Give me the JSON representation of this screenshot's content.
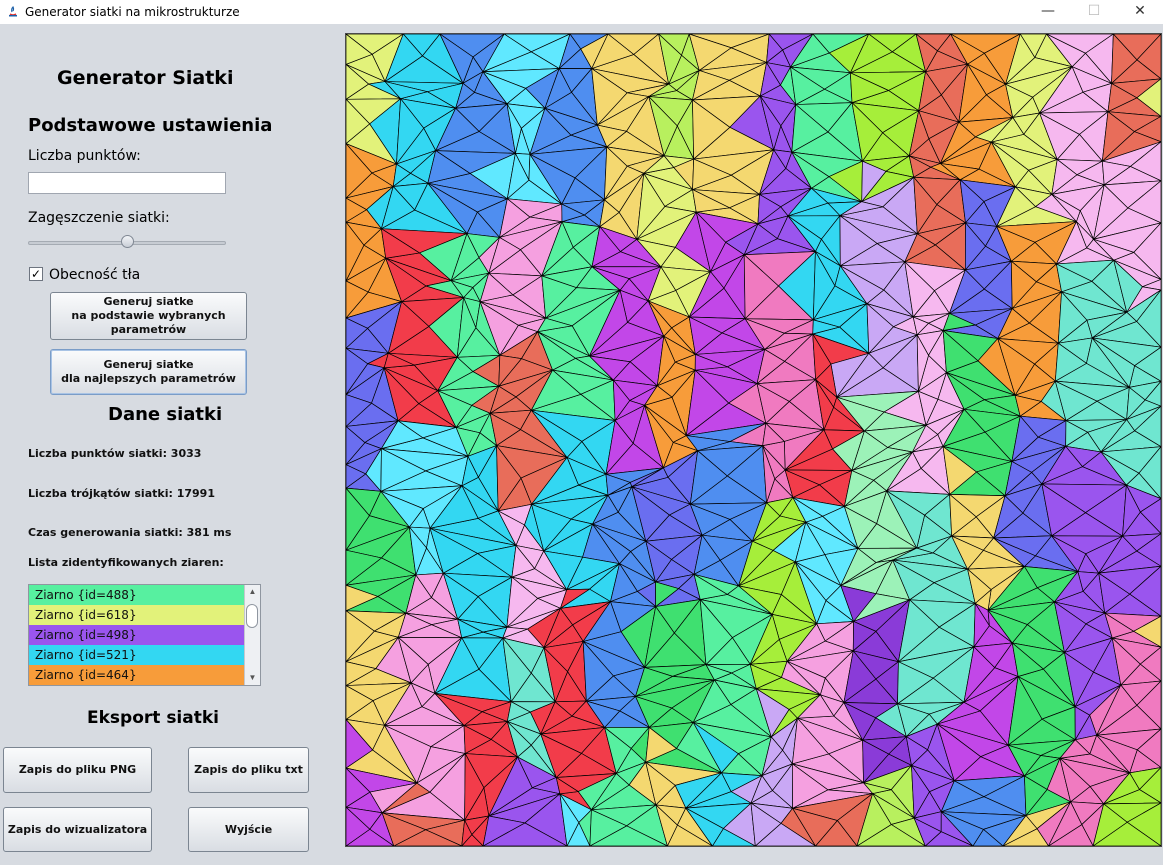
{
  "window": {
    "title": "Generator siatki na mikrostrukturze",
    "minimize": "—",
    "maximize": "☐",
    "close": "✕"
  },
  "sidebar": {
    "app_heading": "Generator Siatki",
    "basic_section": "Podstawowe ustawienia",
    "points_label": "Liczba punktów:",
    "points_value": "",
    "density_label": "Zagęszczenie siatki:",
    "density_level": 0.5,
    "background_checkbox": {
      "label": "Obecność tła",
      "checked": true,
      "mark": "✓"
    },
    "generate_params_button": {
      "line1": "Generuj siatke",
      "line2": "na podstawie wybranych",
      "line3": "parametrów"
    },
    "generate_best_button": {
      "line1": "Generuj siatke",
      "line2": "dla najlepszych parametrów"
    },
    "mesh_data_section": "Dane siatki",
    "stats": {
      "points": "Liczba punktów siatki: 3033",
      "triangles": "Liczba trójkątów siatki: 17991",
      "time": "Czas generowania siatki: 381 ms"
    },
    "grain_list_label": "Lista zidentyfikowanych ziaren:",
    "grains": [
      {
        "label": "Ziarno {id=488}",
        "color": "#57f0a0"
      },
      {
        "label": "Ziarno {id=618}",
        "color": "#e2f27a"
      },
      {
        "label": "Ziarno {id=498}",
        "color": "#9a55ee"
      },
      {
        "label": "Ziarno {id=521}",
        "color": "#33d7f2"
      },
      {
        "label": "Ziarno {id=464}",
        "color": "#f79c3a"
      }
    ],
    "export_section": "Eksport siatki",
    "export_buttons": {
      "png": "Zapis do pliku PNG",
      "txt": "Zapis do pliku txt",
      "visualizer": "Zapis do wizualizatora",
      "exit": "Wyjście"
    }
  },
  "mesh": {
    "grain_colors": [
      "#57f0a0",
      "#e2f27a",
      "#9a55ee",
      "#33d7f2",
      "#f79c3a",
      "#f07ac0",
      "#f23c4a",
      "#6a6ef0",
      "#a6ee3a",
      "#60e8ff",
      "#3fe070",
      "#c9a8f5",
      "#f5a0e0",
      "#f4d870",
      "#9cf2b8",
      "#e86d5a",
      "#c247e8",
      "#8a3bd8",
      "#f6b8ef",
      "#4f8ef0",
      "#b8f05e",
      "#6fe6d0"
    ]
  }
}
